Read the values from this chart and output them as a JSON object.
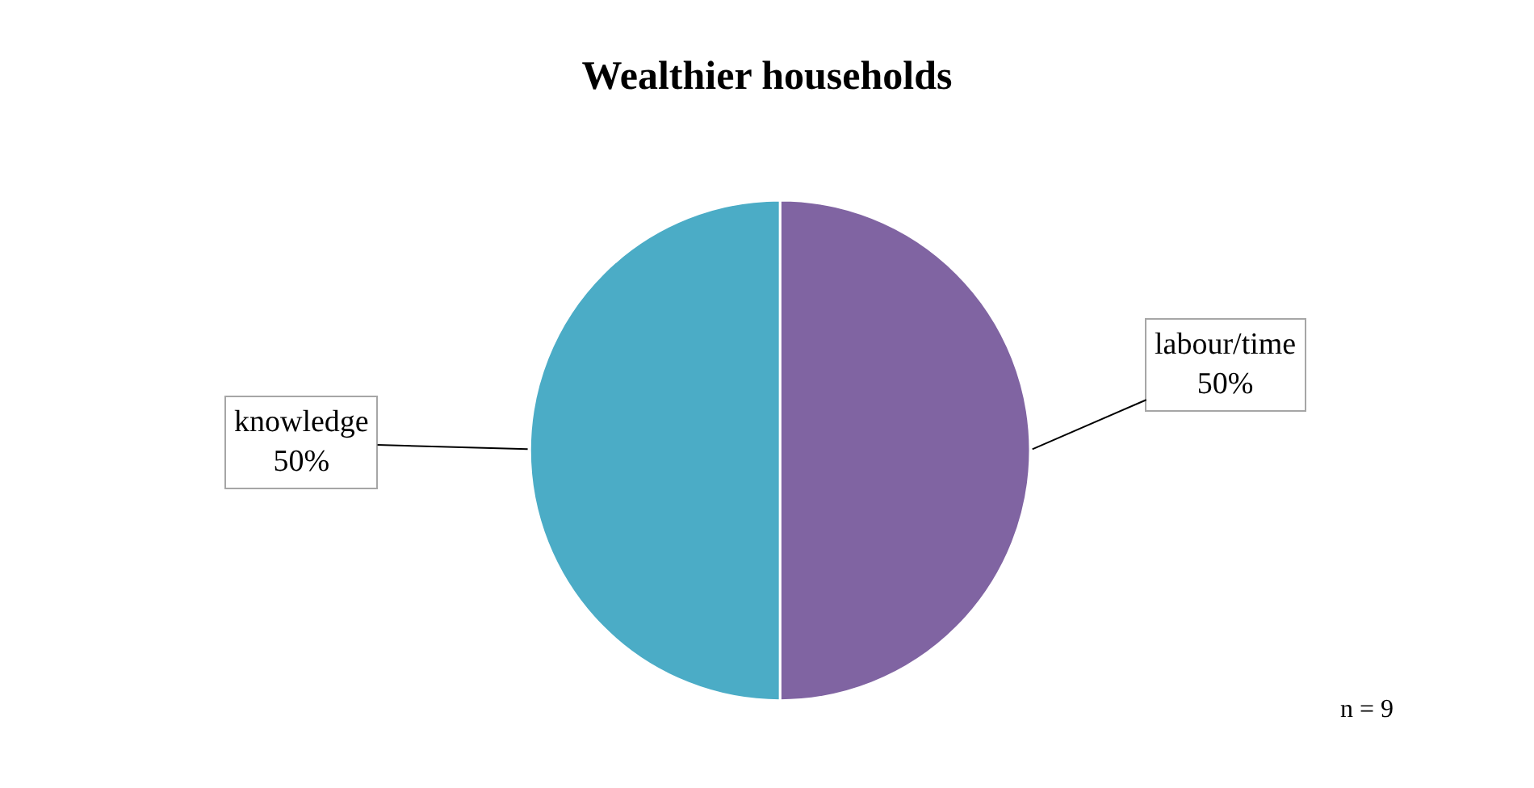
{
  "chart_data": {
    "type": "pie",
    "title": "Wealthier households",
    "categories": [
      "labour/time",
      "knowledge"
    ],
    "values": [
      50,
      50
    ],
    "colors": [
      "#8064a2",
      "#4bacc6"
    ],
    "value_labels": [
      "50%",
      "50%"
    ],
    "legend": false,
    "annotations": [
      "n = 9"
    ]
  }
}
